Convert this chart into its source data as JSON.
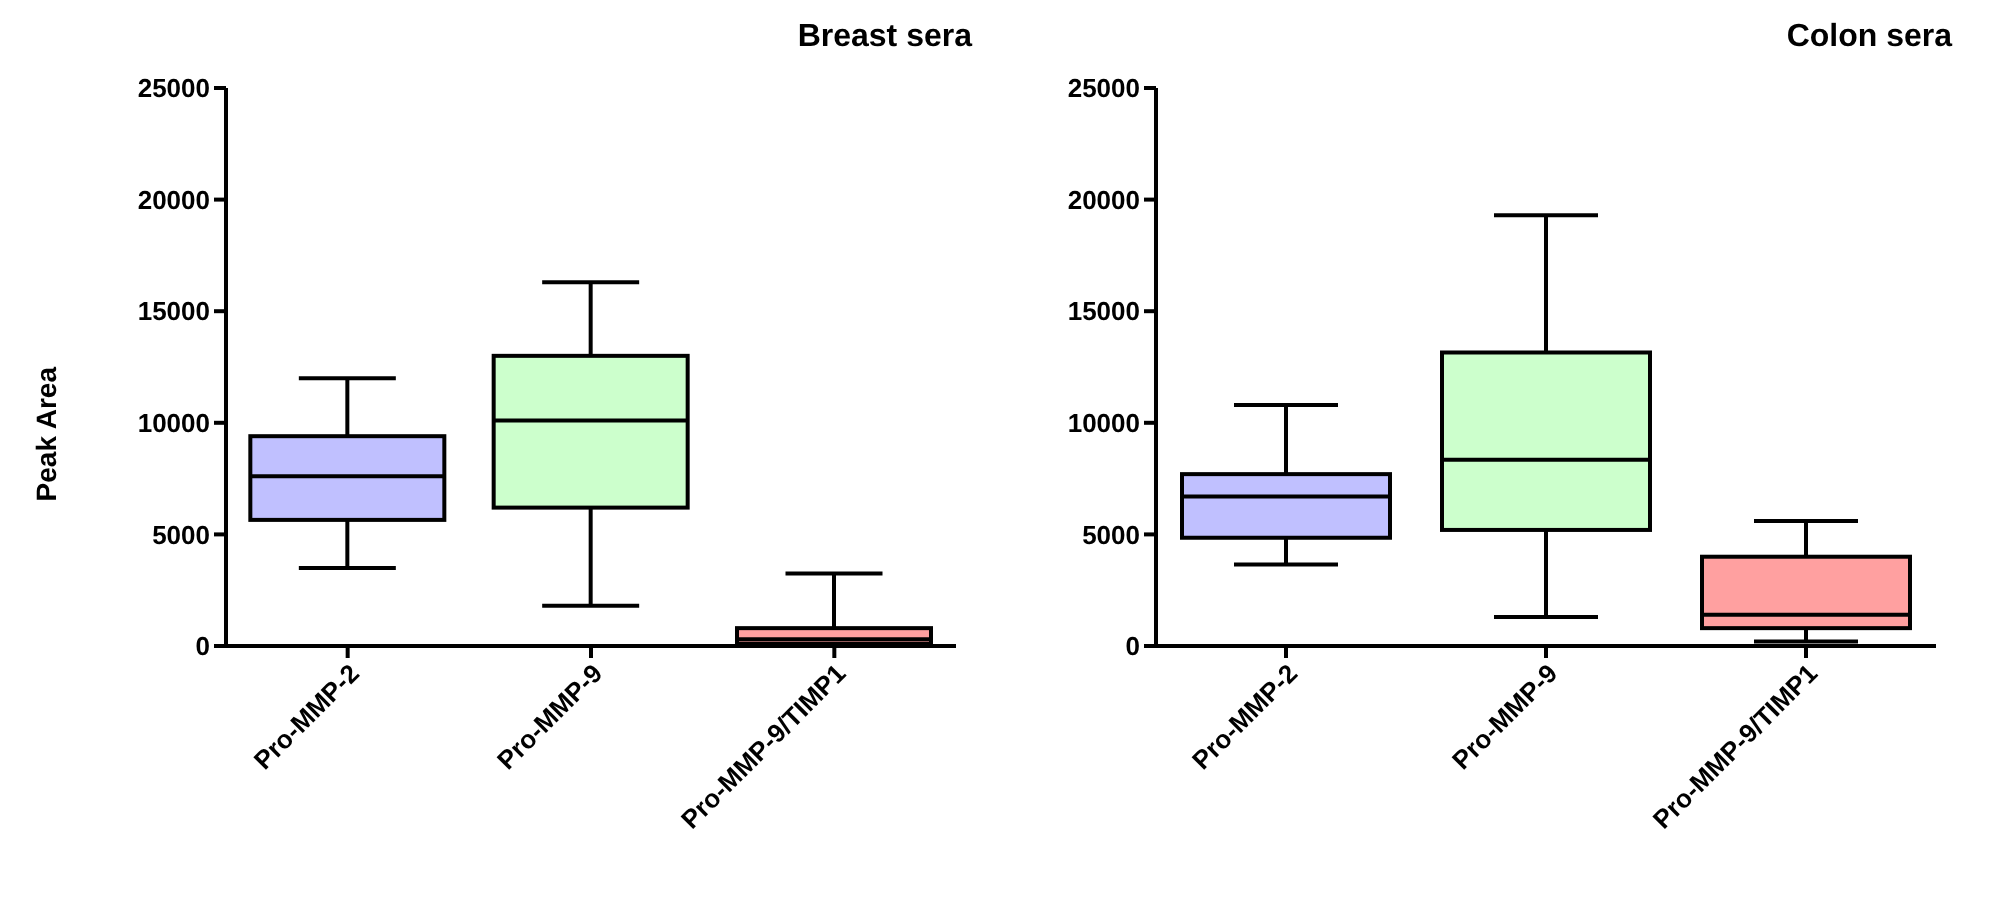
{
  "chart_data": [
    {
      "type": "box",
      "title": "Breast sera",
      "ylabel": "Peak Area",
      "categories": [
        "Pro-MMP-2",
        "Pro-MMP-9",
        "Pro-MMP-9/TIMP1"
      ],
      "colors": [
        "#c0c0ff",
        "#ccffcc",
        "#ffa0a0"
      ],
      "boxes": [
        {
          "low": 3500,
          "q1": 5650,
          "median": 7600,
          "q3": 9400,
          "high": 12000
        },
        {
          "low": 1800,
          "q1": 6200,
          "median": 10100,
          "q3": 13000,
          "high": 16300
        },
        {
          "low": 0,
          "q1": 100,
          "median": 300,
          "q3": 800,
          "high": 3250
        }
      ],
      "ylim": [
        0,
        25000
      ],
      "yticks": [
        0,
        5000,
        10000,
        15000,
        20000,
        25000
      ]
    },
    {
      "type": "box",
      "title": "Colon sera",
      "categories": [
        "Pro-MMP-2",
        "Pro-MMP-9",
        "Pro-MMP-9/TIMP1"
      ],
      "colors": [
        "#c0c0ff",
        "#ccffcc",
        "#ffa0a0"
      ],
      "boxes": [
        {
          "low": 3650,
          "q1": 4850,
          "median": 6700,
          "q3": 7700,
          "high": 10800
        },
        {
          "low": 1300,
          "q1": 5200,
          "median": 8350,
          "q3": 13150,
          "high": 19300
        },
        {
          "low": 200,
          "q1": 800,
          "median": 1400,
          "q3": 4000,
          "high": 5600
        }
      ],
      "ylim": [
        0,
        25000
      ],
      "yticks": [
        0,
        5000,
        10000,
        15000,
        20000,
        25000
      ]
    }
  ]
}
